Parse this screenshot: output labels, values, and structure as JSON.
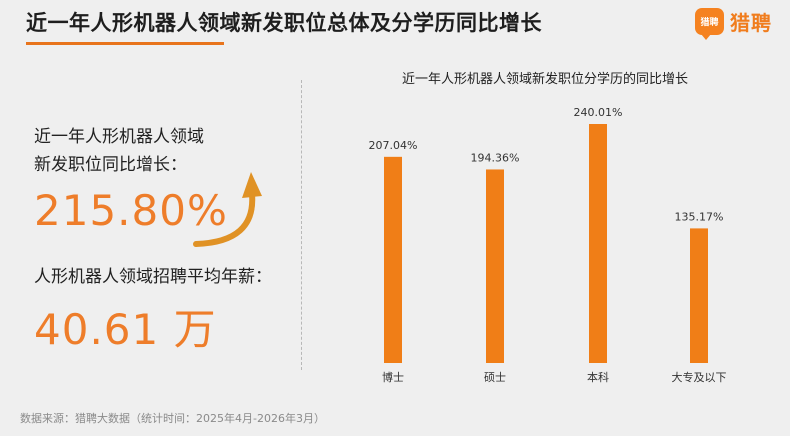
{
  "header": {
    "title": "近一年人形机器人领域新发职位总体及分学历同比增长",
    "logo_badge": "猎聘",
    "logo_text": "猎聘"
  },
  "summary": {
    "growth_label_line1": "近一年人形机器人领域",
    "growth_label_line2": "新发职位同比增长：",
    "growth_value": "215.80%",
    "salary_label": "人形机器人领域招聘平均年薪：",
    "salary_value": "40.61 万"
  },
  "footer": {
    "source": "数据来源：猎聘大数据（统计时间：2025年4月-2026年3月）"
  },
  "colors": {
    "accent": "#ee7d2a",
    "bar": "#f07e17",
    "brand": "#f58220"
  },
  "chart_data": {
    "type": "bar",
    "title": "近一年人形机器人领域新发职位分学历的同比增长",
    "categories": [
      "博士",
      "硕士",
      "本科",
      "大专及以下"
    ],
    "values": [
      207.04,
      194.36,
      240.01,
      135.17
    ],
    "value_labels": [
      "207.04%",
      "194.36%",
      "240.01%",
      "135.17%"
    ],
    "unit": "%",
    "xlabel": "",
    "ylabel": "",
    "grid": false,
    "legend": "none"
  }
}
